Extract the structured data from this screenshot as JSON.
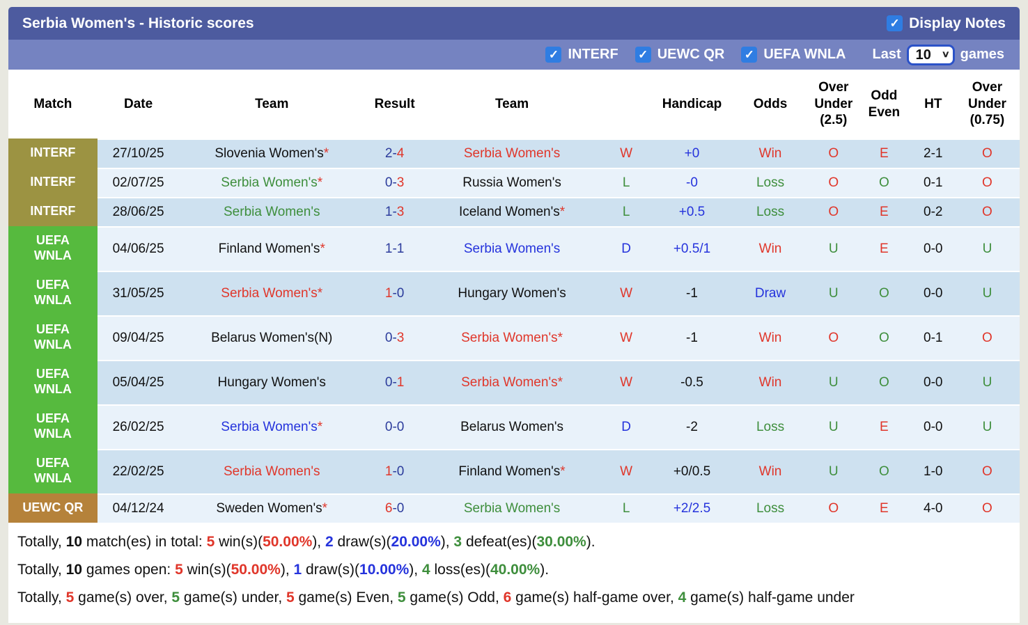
{
  "header": {
    "title": "Serbia Women's - Historic scores",
    "display_notes_label": "Display Notes"
  },
  "filters": {
    "items": [
      {
        "label": "INTERF",
        "checked": true
      },
      {
        "label": "UEWC QR",
        "checked": true
      },
      {
        "label": "UEFA WNLA",
        "checked": true
      }
    ],
    "last_label": "Last",
    "select_value": "10",
    "games_label": "games"
  },
  "colors": {
    "red": "#e0362a",
    "green": "#3e8e3c",
    "blue": "#2533dc",
    "navy": "#2c3c9c",
    "black": "#111111",
    "badge_interf": "#9c9342",
    "badge_uefa": "#56ba3e",
    "badge_uewc": "#b5823a",
    "row_dark": "#cee1f0",
    "row_light": "#e9f2fa",
    "bar1_bg": "#4d5b9f",
    "bar2_bg": "#7583c1",
    "checkbox_blue": "#2f7de2"
  },
  "table": {
    "columns": [
      "Match",
      "Date",
      "Team",
      "Result",
      "Team",
      "",
      "Handicap",
      "Odds",
      "Over Under (2.5)",
      "Odd Even",
      "HT",
      "Over Under (0.75)"
    ],
    "rows": [
      {
        "badge": "INTERF",
        "badge_color": "badge_interf",
        "tall": false,
        "shade": "dark",
        "date": "27/10/25",
        "team1": {
          "name": "Slovenia Women's",
          "c": "black",
          "star": true
        },
        "result": {
          "h": "2",
          "hc": "navy",
          "a": "4",
          "ac": "red"
        },
        "team2": {
          "name": "Serbia Women's",
          "c": "red",
          "star": false
        },
        "wld": {
          "t": "W",
          "c": "red"
        },
        "handicap": {
          "t": "+0",
          "c": "blue"
        },
        "odds": {
          "t": "Win",
          "c": "red"
        },
        "ou25": {
          "t": "O",
          "c": "red"
        },
        "oddeven": {
          "t": "E",
          "c": "red"
        },
        "ht": "2-1",
        "ou075": {
          "t": "O",
          "c": "red"
        }
      },
      {
        "badge": "INTERF",
        "badge_color": "badge_interf",
        "tall": false,
        "shade": "light",
        "date": "02/07/25",
        "team1": {
          "name": "Serbia Women's",
          "c": "green",
          "star": true
        },
        "result": {
          "h": "0",
          "hc": "navy",
          "a": "3",
          "ac": "red"
        },
        "team2": {
          "name": "Russia Women's",
          "c": "black",
          "star": false
        },
        "wld": {
          "t": "L",
          "c": "green"
        },
        "handicap": {
          "t": "-0",
          "c": "blue"
        },
        "odds": {
          "t": "Loss",
          "c": "green"
        },
        "ou25": {
          "t": "O",
          "c": "red"
        },
        "oddeven": {
          "t": "O",
          "c": "green"
        },
        "ht": "0-1",
        "ou075": {
          "t": "O",
          "c": "red"
        }
      },
      {
        "badge": "INTERF",
        "badge_color": "badge_interf",
        "tall": false,
        "shade": "dark",
        "date": "28/06/25",
        "team1": {
          "name": "Serbia Women's",
          "c": "green",
          "star": false
        },
        "result": {
          "h": "1",
          "hc": "navy",
          "a": "3",
          "ac": "red"
        },
        "team2": {
          "name": "Iceland Women's",
          "c": "black",
          "star": true
        },
        "wld": {
          "t": "L",
          "c": "green"
        },
        "handicap": {
          "t": "+0.5",
          "c": "blue"
        },
        "odds": {
          "t": "Loss",
          "c": "green"
        },
        "ou25": {
          "t": "O",
          "c": "red"
        },
        "oddeven": {
          "t": "E",
          "c": "red"
        },
        "ht": "0-2",
        "ou075": {
          "t": "O",
          "c": "red"
        }
      },
      {
        "badge": "UEFA\nWNLA",
        "badge_color": "badge_uefa",
        "tall": true,
        "shade": "light",
        "date": "04/06/25",
        "team1": {
          "name": "Finland Women's",
          "c": "black",
          "star": true
        },
        "result": {
          "h": "1",
          "hc": "navy",
          "a": "1",
          "ac": "navy"
        },
        "team2": {
          "name": "Serbia Women's",
          "c": "blue",
          "star": false
        },
        "wld": {
          "t": "D",
          "c": "blue"
        },
        "handicap": {
          "t": "+0.5/1",
          "c": "blue"
        },
        "odds": {
          "t": "Win",
          "c": "red"
        },
        "ou25": {
          "t": "U",
          "c": "green"
        },
        "oddeven": {
          "t": "E",
          "c": "red"
        },
        "ht": "0-0",
        "ou075": {
          "t": "U",
          "c": "green"
        }
      },
      {
        "badge": "UEFA\nWNLA",
        "badge_color": "badge_uefa",
        "tall": true,
        "shade": "dark",
        "date": "31/05/25",
        "team1": {
          "name": "Serbia Women's",
          "c": "red",
          "star": true
        },
        "result": {
          "h": "1",
          "hc": "red",
          "a": "0",
          "ac": "navy"
        },
        "team2": {
          "name": "Hungary Women's",
          "c": "black",
          "star": false
        },
        "wld": {
          "t": "W",
          "c": "red"
        },
        "handicap": {
          "t": "-1",
          "c": "black"
        },
        "odds": {
          "t": "Draw",
          "c": "blue"
        },
        "ou25": {
          "t": "U",
          "c": "green"
        },
        "oddeven": {
          "t": "O",
          "c": "green"
        },
        "ht": "0-0",
        "ou075": {
          "t": "U",
          "c": "green"
        }
      },
      {
        "badge": "UEFA\nWNLA",
        "badge_color": "badge_uefa",
        "tall": true,
        "shade": "light",
        "date": "09/04/25",
        "team1": {
          "name": "Belarus Women's(N)",
          "c": "black",
          "star": false
        },
        "result": {
          "h": "0",
          "hc": "navy",
          "a": "3",
          "ac": "red"
        },
        "team2": {
          "name": "Serbia Women's",
          "c": "red",
          "star": true
        },
        "wld": {
          "t": "W",
          "c": "red"
        },
        "handicap": {
          "t": "-1",
          "c": "black"
        },
        "odds": {
          "t": "Win",
          "c": "red"
        },
        "ou25": {
          "t": "O",
          "c": "red"
        },
        "oddeven": {
          "t": "O",
          "c": "green"
        },
        "ht": "0-1",
        "ou075": {
          "t": "O",
          "c": "red"
        }
      },
      {
        "badge": "UEFA\nWNLA",
        "badge_color": "badge_uefa",
        "tall": true,
        "shade": "dark",
        "date": "05/04/25",
        "team1": {
          "name": "Hungary Women's",
          "c": "black",
          "star": false
        },
        "result": {
          "h": "0",
          "hc": "navy",
          "a": "1",
          "ac": "red"
        },
        "team2": {
          "name": "Serbia Women's",
          "c": "red",
          "star": true
        },
        "wld": {
          "t": "W",
          "c": "red"
        },
        "handicap": {
          "t": "-0.5",
          "c": "black"
        },
        "odds": {
          "t": "Win",
          "c": "red"
        },
        "ou25": {
          "t": "U",
          "c": "green"
        },
        "oddeven": {
          "t": "O",
          "c": "green"
        },
        "ht": "0-0",
        "ou075": {
          "t": "U",
          "c": "green"
        }
      },
      {
        "badge": "UEFA\nWNLA",
        "badge_color": "badge_uefa",
        "tall": true,
        "shade": "light",
        "date": "26/02/25",
        "team1": {
          "name": "Serbia Women's",
          "c": "blue",
          "star": true
        },
        "result": {
          "h": "0",
          "hc": "navy",
          "a": "0",
          "ac": "navy"
        },
        "team2": {
          "name": "Belarus Women's",
          "c": "black",
          "star": false
        },
        "wld": {
          "t": "D",
          "c": "blue"
        },
        "handicap": {
          "t": "-2",
          "c": "black"
        },
        "odds": {
          "t": "Loss",
          "c": "green"
        },
        "ou25": {
          "t": "U",
          "c": "green"
        },
        "oddeven": {
          "t": "E",
          "c": "red"
        },
        "ht": "0-0",
        "ou075": {
          "t": "U",
          "c": "green"
        }
      },
      {
        "badge": "UEFA\nWNLA",
        "badge_color": "badge_uefa",
        "tall": true,
        "shade": "dark",
        "date": "22/02/25",
        "team1": {
          "name": "Serbia Women's",
          "c": "red",
          "star": false
        },
        "result": {
          "h": "1",
          "hc": "red",
          "a": "0",
          "ac": "navy"
        },
        "team2": {
          "name": "Finland Women's",
          "c": "black",
          "star": true
        },
        "wld": {
          "t": "W",
          "c": "red"
        },
        "handicap": {
          "t": "+0/0.5",
          "c": "black"
        },
        "odds": {
          "t": "Win",
          "c": "red"
        },
        "ou25": {
          "t": "U",
          "c": "green"
        },
        "oddeven": {
          "t": "O",
          "c": "green"
        },
        "ht": "1-0",
        "ou075": {
          "t": "O",
          "c": "red"
        }
      },
      {
        "badge": "UEWC QR",
        "badge_color": "badge_uewc",
        "tall": false,
        "shade": "light",
        "date": "04/12/24",
        "team1": {
          "name": "Sweden Women's",
          "c": "black",
          "star": true
        },
        "result": {
          "h": "6",
          "hc": "red",
          "a": "0",
          "ac": "navy"
        },
        "team2": {
          "name": "Serbia Women's",
          "c": "green",
          "star": false
        },
        "wld": {
          "t": "L",
          "c": "green"
        },
        "handicap": {
          "t": "+2/2.5",
          "c": "blue"
        },
        "odds": {
          "t": "Loss",
          "c": "green"
        },
        "ou25": {
          "t": "O",
          "c": "red"
        },
        "oddeven": {
          "t": "E",
          "c": "red"
        },
        "ht": "4-0",
        "ou075": {
          "t": "O",
          "c": "red"
        }
      }
    ]
  },
  "footer": {
    "lines": [
      [
        {
          "t": "Totally, "
        },
        {
          "t": "10",
          "b": true
        },
        {
          "t": " match(es) in total: "
        },
        {
          "t": "5",
          "c": "red",
          "b": true
        },
        {
          "t": " win(s)("
        },
        {
          "t": "50.00%",
          "c": "red",
          "b": true
        },
        {
          "t": "), "
        },
        {
          "t": "2",
          "c": "blue",
          "b": true
        },
        {
          "t": " draw(s)("
        },
        {
          "t": "20.00%",
          "c": "blue",
          "b": true
        },
        {
          "t": "), "
        },
        {
          "t": "3",
          "c": "green",
          "b": true
        },
        {
          "t": " defeat(es)("
        },
        {
          "t": "30.00%",
          "c": "green",
          "b": true
        },
        {
          "t": ")."
        }
      ],
      [
        {
          "t": "Totally, "
        },
        {
          "t": "10",
          "b": true
        },
        {
          "t": " games open: "
        },
        {
          "t": "5",
          "c": "red",
          "b": true
        },
        {
          "t": " win(s)("
        },
        {
          "t": "50.00%",
          "c": "red",
          "b": true
        },
        {
          "t": "), "
        },
        {
          "t": "1",
          "c": "blue",
          "b": true
        },
        {
          "t": " draw(s)("
        },
        {
          "t": "10.00%",
          "c": "blue",
          "b": true
        },
        {
          "t": "), "
        },
        {
          "t": "4",
          "c": "green",
          "b": true
        },
        {
          "t": " loss(es)("
        },
        {
          "t": "40.00%",
          "c": "green",
          "b": true
        },
        {
          "t": ")."
        }
      ],
      [
        {
          "t": "Totally, "
        },
        {
          "t": "5",
          "c": "red",
          "b": true
        },
        {
          "t": " game(s) over, "
        },
        {
          "t": "5",
          "c": "green",
          "b": true
        },
        {
          "t": " game(s) under, "
        },
        {
          "t": "5",
          "c": "red",
          "b": true
        },
        {
          "t": " game(s) Even, "
        },
        {
          "t": "5",
          "c": "green",
          "b": true
        },
        {
          "t": " game(s) Odd, "
        },
        {
          "t": "6",
          "c": "red",
          "b": true
        },
        {
          "t": " game(s) half-game over, "
        },
        {
          "t": "4",
          "c": "green",
          "b": true
        },
        {
          "t": " game(s) half-game under"
        }
      ]
    ]
  }
}
